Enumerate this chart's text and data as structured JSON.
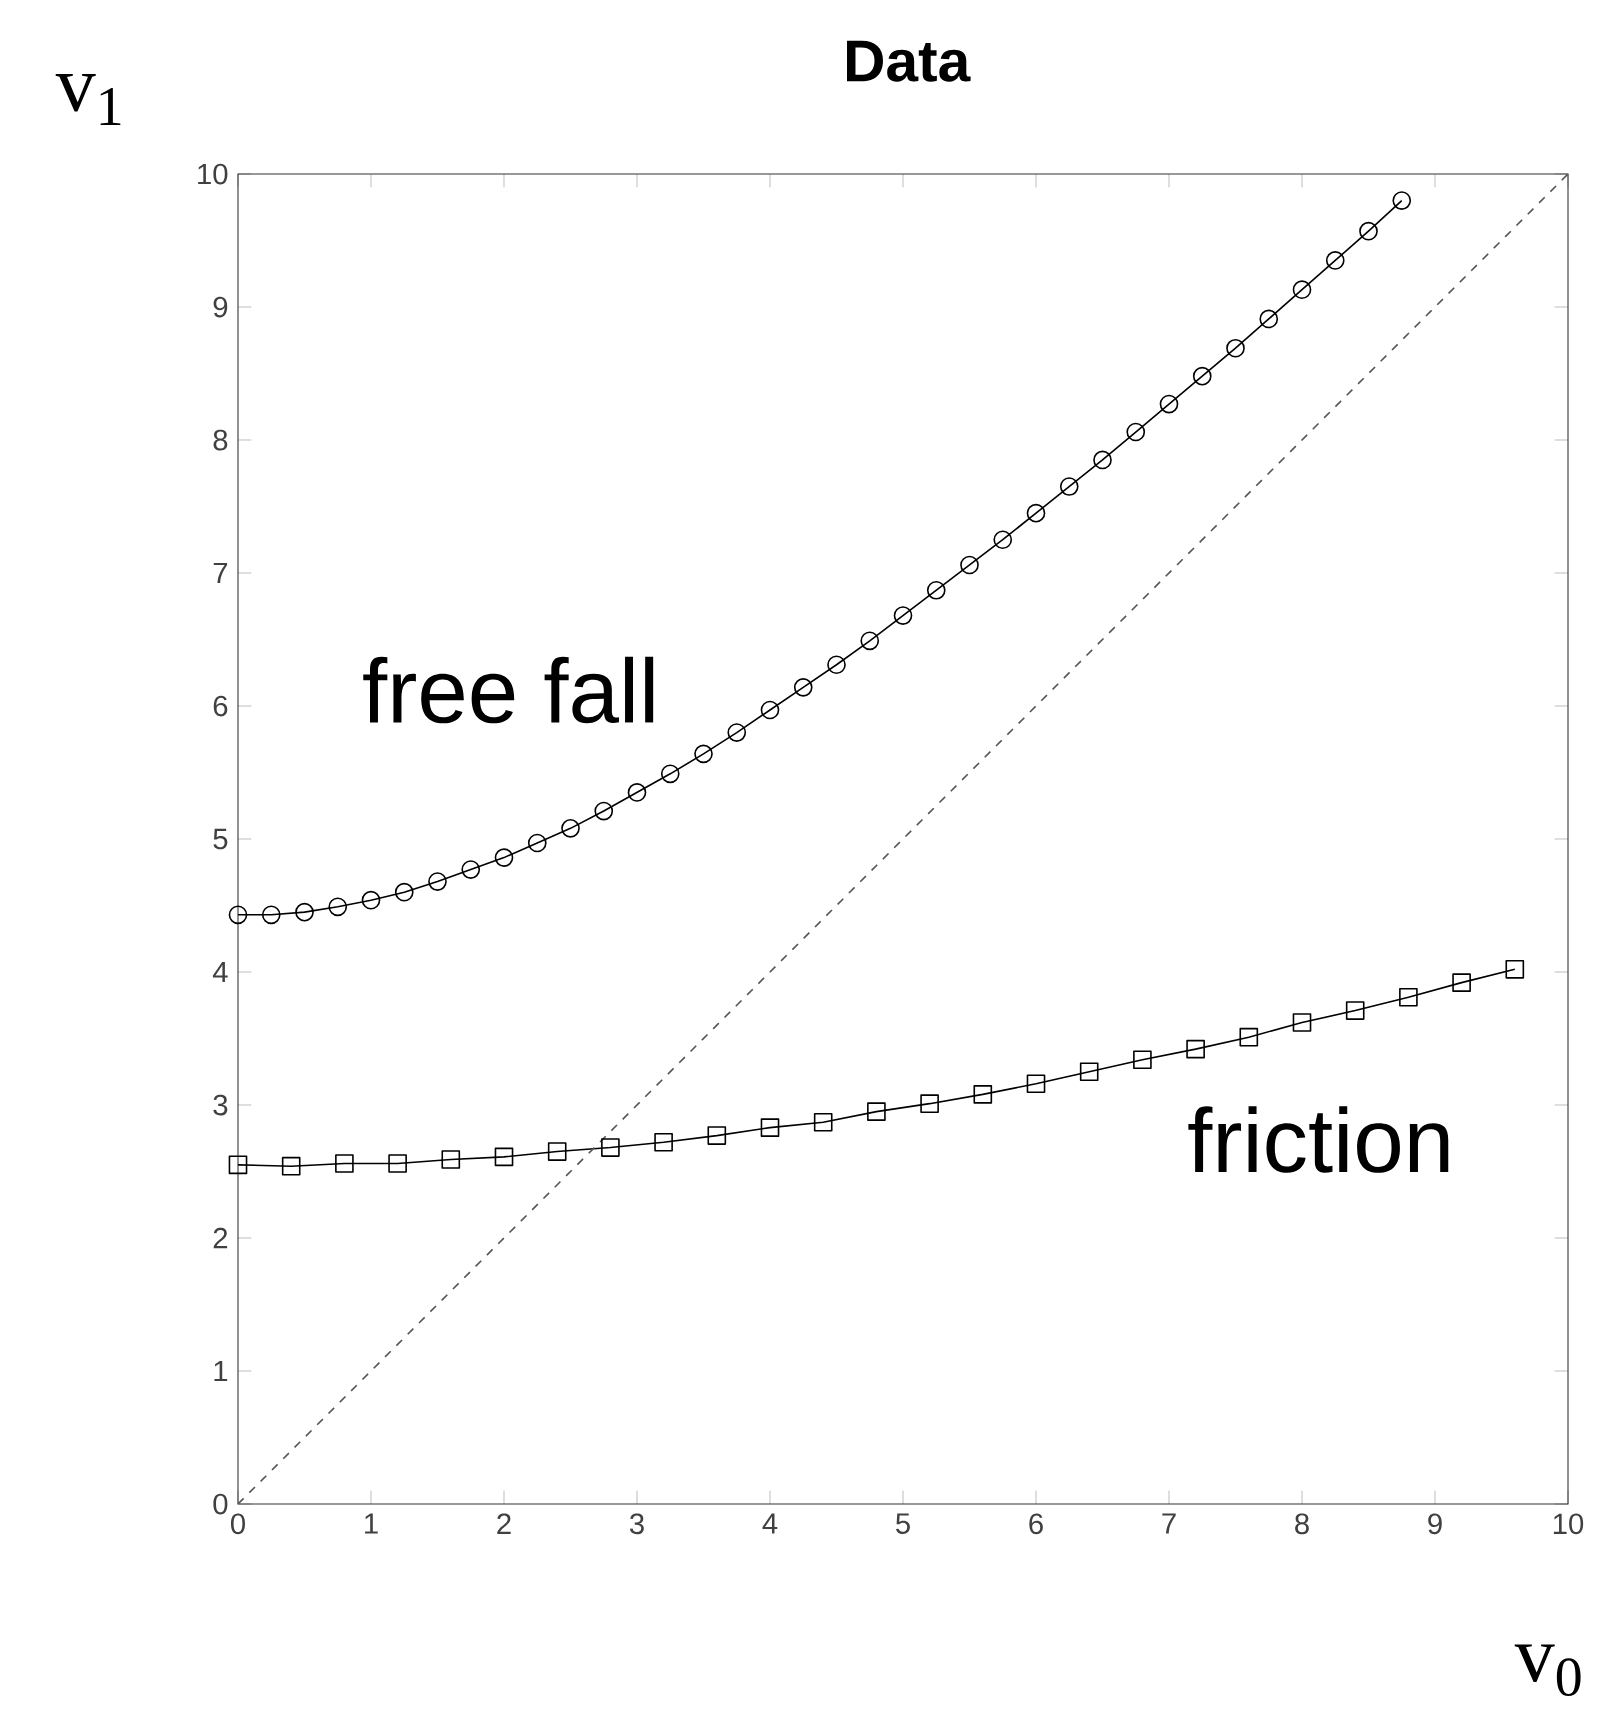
{
  "chart_data": {
    "type": "line",
    "title": "Data",
    "xlabel": "v$_{0}$",
    "ylabel": "v$_{1}$",
    "xlim": [
      0,
      10
    ],
    "ylim": [
      0,
      10
    ],
    "xticks": [
      0,
      1,
      2,
      3,
      4,
      5,
      6,
      7,
      8,
      9,
      10
    ],
    "yticks": [
      0,
      1,
      2,
      3,
      4,
      5,
      6,
      7,
      8,
      9,
      10
    ],
    "grid": false,
    "series": [
      {
        "name": "free fall",
        "color": "#000000",
        "marker": "circle",
        "line_style": "solid",
        "x": [
          0,
          0.25,
          0.5,
          0.75,
          1,
          1.25,
          1.5,
          1.75,
          2,
          2.25,
          2.5,
          2.75,
          3,
          3.25,
          3.5,
          3.75,
          4,
          4.25,
          4.5,
          4.75,
          5,
          5.25,
          5.5,
          5.75,
          6,
          6.25,
          6.5,
          6.75,
          7,
          7.25,
          7.5,
          7.75,
          8,
          8.25,
          8.5,
          8.75
        ],
        "values": [
          4.43,
          4.43,
          4.45,
          4.49,
          4.54,
          4.6,
          4.68,
          4.77,
          4.86,
          4.97,
          5.08,
          5.21,
          5.35,
          5.49,
          5.64,
          5.8,
          5.97,
          6.14,
          6.31,
          6.49,
          6.68,
          6.87,
          7.06,
          7.25,
          7.45,
          7.65,
          7.85,
          8.06,
          8.27,
          8.48,
          8.69,
          8.91,
          9.13,
          9.35,
          9.57,
          9.8
        ]
      },
      {
        "name": "friction",
        "color": "#000000",
        "marker": "square",
        "line_style": "solid",
        "x": [
          0,
          0.4,
          0.8,
          1.2,
          1.6,
          2.0,
          2.4,
          2.8,
          3.2,
          3.6,
          4.0,
          4.4,
          4.8,
          5.2,
          5.6,
          6.0,
          6.4,
          6.8,
          7.2,
          7.6,
          8.0,
          8.4,
          8.8,
          9.2,
          9.6
        ],
        "values": [
          2.55,
          2.54,
          2.56,
          2.56,
          2.59,
          2.61,
          2.65,
          2.68,
          2.72,
          2.77,
          2.83,
          2.87,
          2.95,
          3.01,
          3.08,
          3.16,
          3.25,
          3.34,
          3.42,
          3.51,
          3.62,
          3.71,
          3.81,
          3.92,
          4.02
        ]
      },
      {
        "color": "#555555",
        "marker": "none",
        "line_style": "dashed",
        "x": [
          0,
          10
        ],
        "values": [
          0,
          10
        ]
      }
    ]
  }
}
